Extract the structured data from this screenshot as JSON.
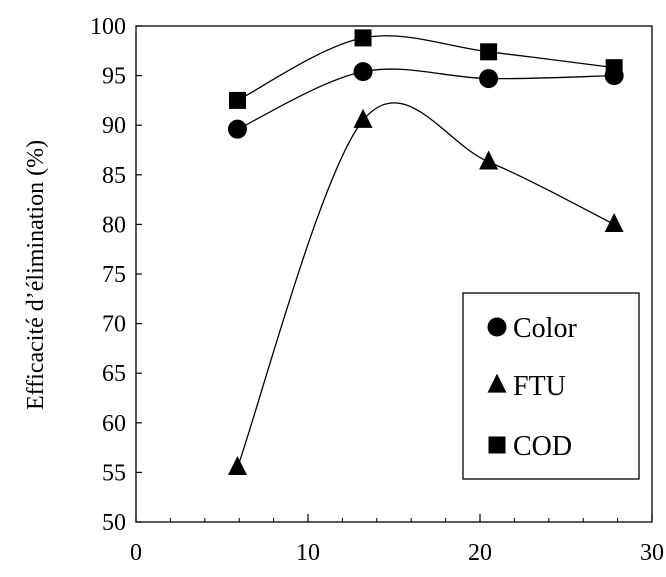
{
  "chart_data": {
    "type": "line",
    "title": "",
    "xlabel": "",
    "ylabel": "Efficacité d’élimination  (%)",
    "xlim": [
      0,
      30
    ],
    "ylim": [
      50,
      100
    ],
    "x_ticks": [
      0,
      10,
      20,
      30
    ],
    "y_ticks": [
      50,
      55,
      60,
      65,
      70,
      75,
      80,
      85,
      90,
      95,
      100
    ],
    "x_minor_step": 2,
    "grid": false,
    "legend_position": "bottom-right",
    "series": [
      {
        "name": "Color",
        "marker": "circle",
        "color": "#000000",
        "x": [
          5.9,
          13.2,
          20.5,
          27.8
        ],
        "y": [
          89.6,
          95.4,
          94.7,
          95.0
        ]
      },
      {
        "name": "FTU",
        "marker": "triangle",
        "color": "#000000",
        "x": [
          5.9,
          13.2,
          20.5,
          27.8
        ],
        "y": [
          55.5,
          90.5,
          86.3,
          80.0
        ]
      },
      {
        "name": "COD",
        "marker": "square",
        "color": "#000000",
        "x": [
          5.9,
          13.2,
          20.5,
          27.8
        ],
        "y": [
          92.5,
          98.8,
          97.4,
          95.8
        ]
      }
    ]
  }
}
